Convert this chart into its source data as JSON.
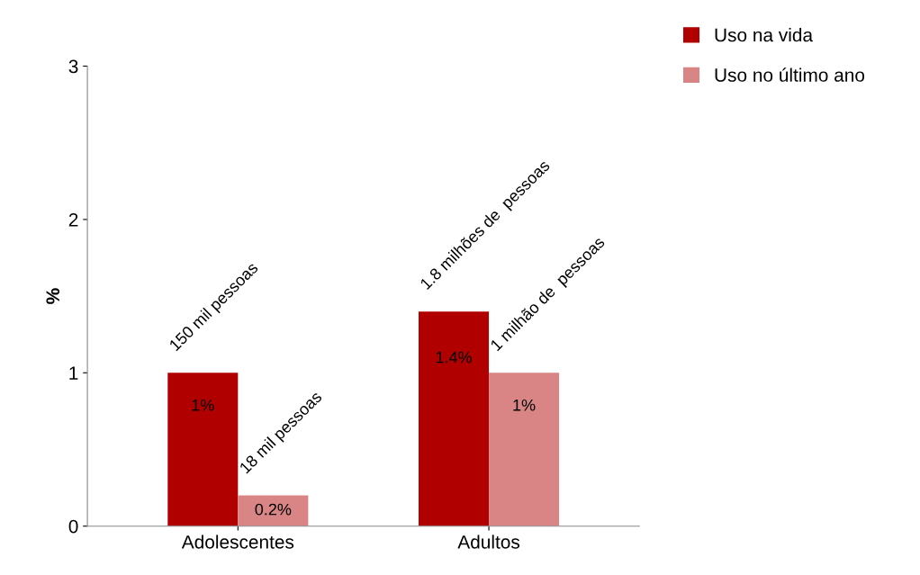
{
  "chart_data": {
    "type": "bar",
    "ylabel": "%",
    "categories": [
      "Adolescentes",
      "Adultos"
    ],
    "series": [
      {
        "name": "Uso na vida",
        "color": "#b00000",
        "values": [
          1,
          1.4
        ],
        "value_labels": [
          "1%",
          "1.4%"
        ]
      },
      {
        "name": "Uso no último ano",
        "color": "#d98585",
        "values": [
          0.2,
          1
        ],
        "value_labels": [
          "0.2%",
          "1%"
        ]
      }
    ],
    "ylim": [
      0,
      3
    ],
    "yticks": [
      0,
      1,
      2,
      3
    ],
    "grid": false,
    "legend": "top right",
    "annotations": [
      {
        "text": "150 mil pessoas",
        "x": "Adolescentes",
        "y": 1
      },
      {
        "text": "18 mil pessoas",
        "x": "Adolescentes",
        "y": 0.2
      },
      {
        "text": "1.8 milhões de  pessoas",
        "x": "Adultos",
        "y": 1.4
      },
      {
        "text": "1 milhão de  pessoas",
        "x": "Adultos",
        "y": 1
      }
    ]
  }
}
